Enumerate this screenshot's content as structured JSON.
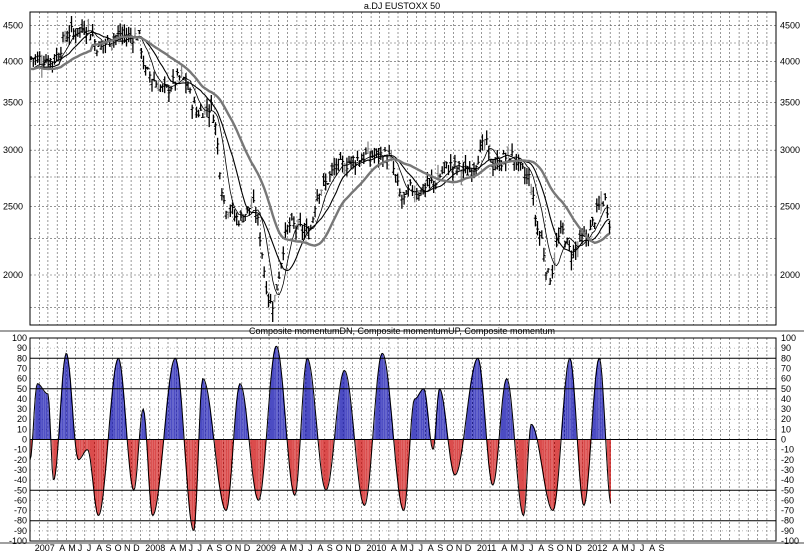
{
  "chart_data": [
    {
      "type": "ohlc",
      "title": "a.DJ EUSTOXX 50",
      "y_scale": "log",
      "ylim": [
        1700,
        4700
      ],
      "y_ticks": [
        4500,
        4000,
        3500,
        3000,
        2500,
        2000
      ],
      "y_tick_labels": [
        "4500",
        "4000",
        "3500",
        "3000",
        "2500",
        "2000"
      ],
      "x_range": [
        "2007-01-01",
        "2013-10-01"
      ],
      "price_anchors": [
        [
          "2007-01-05",
          4050
        ],
        [
          "2007-03-15",
          4020
        ],
        [
          "2007-05-15",
          4400
        ],
        [
          "2007-07-10",
          4480
        ],
        [
          "2007-08-15",
          4200
        ],
        [
          "2007-10-20",
          4350
        ],
        [
          "2007-12-25",
          4350
        ],
        [
          "2008-01-20",
          3850
        ],
        [
          "2008-03-20",
          3650
        ],
        [
          "2008-05-15",
          3800
        ],
        [
          "2008-07-10",
          3400
        ],
        [
          "2008-08-20",
          3450
        ],
        [
          "2008-10-10",
          2500
        ],
        [
          "2008-11-20",
          2400
        ],
        [
          "2009-01-05",
          2500
        ],
        [
          "2009-03-09",
          1820
        ],
        [
          "2009-05-10",
          2350
        ],
        [
          "2009-07-10",
          2300
        ],
        [
          "2009-08-15",
          2650
        ],
        [
          "2009-10-20",
          2850
        ],
        [
          "2009-12-20",
          2920
        ],
        [
          "2010-01-20",
          2950
        ],
        [
          "2010-03-25",
          2950
        ],
        [
          "2010-05-20",
          2550
        ],
        [
          "2010-06-15",
          2650
        ],
        [
          "2010-07-10",
          2620
        ],
        [
          "2010-08-20",
          2700
        ],
        [
          "2010-10-20",
          2850
        ],
        [
          "2010-12-20",
          2800
        ],
        [
          "2011-02-15",
          3050
        ],
        [
          "2011-03-15",
          2850
        ],
        [
          "2011-05-05",
          2950
        ],
        [
          "2011-07-05",
          2750
        ],
        [
          "2011-08-10",
          2300
        ],
        [
          "2011-09-12",
          1990
        ],
        [
          "2011-10-25",
          2300
        ],
        [
          "2011-11-25",
          2150
        ],
        [
          "2012-01-05",
          2250
        ],
        [
          "2012-03-15",
          2550
        ],
        [
          "2012-04-05",
          2350
        ]
      ],
      "moving_averages": [
        {
          "style": "thin",
          "window_days": 50
        },
        {
          "style": "medium",
          "window_days": 100
        },
        {
          "style": "thick",
          "window_days": 200
        }
      ]
    },
    {
      "type": "bar",
      "title": "Composite momentumDN, Composite momentumUP, Composite momentum",
      "ylim": [
        -100,
        100
      ],
      "y_ticks": [
        100,
        90,
        80,
        70,
        60,
        50,
        40,
        30,
        20,
        10,
        0,
        -10,
        -20,
        -30,
        -40,
        -50,
        -60,
        -70,
        -80,
        -90,
        -100
      ],
      "y_tick_labels": [
        "100",
        "90",
        "80",
        "70",
        "60",
        "50",
        "40",
        "30",
        "20",
        "10",
        "0",
        "-10",
        "-20",
        "-30",
        "-40",
        "-50",
        "-60",
        "-70",
        "-80",
        "-90",
        "-100"
      ],
      "reference_lines": [
        80,
        50,
        0,
        -50,
        -80
      ],
      "series": [
        {
          "color": "#0000aa"
        },
        {
          "color": "#cc0000"
        }
      ],
      "momentum_anchors": [
        [
          "2007-01-01",
          -20
        ],
        [
          "2007-01-25",
          55
        ],
        [
          "2007-03-01",
          45
        ],
        [
          "2007-03-20",
          -40
        ],
        [
          "2007-05-01",
          85
        ],
        [
          "2007-06-10",
          -20
        ],
        [
          "2007-07-10",
          -10
        ],
        [
          "2007-08-15",
          -75
        ],
        [
          "2007-10-20",
          80
        ],
        [
          "2007-12-10",
          -50
        ],
        [
          "2008-01-10",
          30
        ],
        [
          "2008-02-10",
          -75
        ],
        [
          "2008-04-25",
          80
        ],
        [
          "2008-06-25",
          -90
        ],
        [
          "2008-07-25",
          60
        ],
        [
          "2008-10-10",
          -70
        ],
        [
          "2008-11-25",
          55
        ],
        [
          "2009-01-25",
          -60
        ],
        [
          "2009-03-25",
          92
        ],
        [
          "2009-05-25",
          -55
        ],
        [
          "2009-07-05",
          80
        ],
        [
          "2009-09-05",
          -50
        ],
        [
          "2009-11-05",
          68
        ],
        [
          "2010-01-10",
          -65
        ],
        [
          "2010-03-10",
          85
        ],
        [
          "2010-05-20",
          -70
        ],
        [
          "2010-06-25",
          40
        ],
        [
          "2010-07-25",
          50
        ],
        [
          "2010-08-25",
          -10
        ],
        [
          "2010-09-15",
          50
        ],
        [
          "2010-11-05",
          -35
        ],
        [
          "2011-01-20",
          80
        ],
        [
          "2011-03-10",
          -45
        ],
        [
          "2011-04-25",
          60
        ],
        [
          "2011-06-20",
          -75
        ],
        [
          "2011-07-15",
          15
        ],
        [
          "2011-09-25",
          -70
        ],
        [
          "2011-11-20",
          80
        ],
        [
          "2012-01-05",
          -65
        ],
        [
          "2012-02-25",
          80
        ],
        [
          "2012-04-05",
          -65
        ]
      ]
    }
  ],
  "x_axis": {
    "labels": [
      {
        "date": "2007-01-10",
        "text": "2007"
      },
      {
        "date": "2007-04-01",
        "text": "A"
      },
      {
        "date": "2007-05-01",
        "text": "M"
      },
      {
        "date": "2007-06-01",
        "text": "J"
      },
      {
        "date": "2007-07-01",
        "text": "J"
      },
      {
        "date": "2007-08-01",
        "text": "A"
      },
      {
        "date": "2007-09-01",
        "text": "S"
      },
      {
        "date": "2007-10-01",
        "text": "O"
      },
      {
        "date": "2007-11-01",
        "text": "N"
      },
      {
        "date": "2007-12-01",
        "text": "D"
      },
      {
        "date": "2008-01-10",
        "text": "2008"
      },
      {
        "date": "2008-04-01",
        "text": "A"
      },
      {
        "date": "2008-05-01",
        "text": "M"
      },
      {
        "date": "2008-06-01",
        "text": "J"
      },
      {
        "date": "2008-07-01",
        "text": "J"
      },
      {
        "date": "2008-08-01",
        "text": "A"
      },
      {
        "date": "2008-09-01",
        "text": "S"
      },
      {
        "date": "2008-10-01",
        "text": "O"
      },
      {
        "date": "2008-11-01",
        "text": "N"
      },
      {
        "date": "2008-12-01",
        "text": "D"
      },
      {
        "date": "2009-01-10",
        "text": "2009"
      },
      {
        "date": "2009-04-01",
        "text": "A"
      },
      {
        "date": "2009-05-01",
        "text": "M"
      },
      {
        "date": "2009-06-01",
        "text": "J"
      },
      {
        "date": "2009-07-01",
        "text": "J"
      },
      {
        "date": "2009-08-01",
        "text": "A"
      },
      {
        "date": "2009-09-01",
        "text": "S"
      },
      {
        "date": "2009-10-01",
        "text": "O"
      },
      {
        "date": "2009-11-01",
        "text": "N"
      },
      {
        "date": "2009-12-01",
        "text": "D"
      },
      {
        "date": "2010-01-10",
        "text": "2010"
      },
      {
        "date": "2010-04-01",
        "text": "A"
      },
      {
        "date": "2010-05-01",
        "text": "M"
      },
      {
        "date": "2010-06-01",
        "text": "J"
      },
      {
        "date": "2010-07-01",
        "text": "J"
      },
      {
        "date": "2010-08-01",
        "text": "A"
      },
      {
        "date": "2010-09-01",
        "text": "S"
      },
      {
        "date": "2010-10-01",
        "text": "O"
      },
      {
        "date": "2010-11-01",
        "text": "N"
      },
      {
        "date": "2010-12-01",
        "text": "D"
      },
      {
        "date": "2011-01-10",
        "text": "2011"
      },
      {
        "date": "2011-04-01",
        "text": "A"
      },
      {
        "date": "2011-05-01",
        "text": "M"
      },
      {
        "date": "2011-06-01",
        "text": "J"
      },
      {
        "date": "2011-07-01",
        "text": "J"
      },
      {
        "date": "2011-08-01",
        "text": "A"
      },
      {
        "date": "2011-09-01",
        "text": "S"
      },
      {
        "date": "2011-10-01",
        "text": "O"
      },
      {
        "date": "2011-11-01",
        "text": "N"
      },
      {
        "date": "2011-12-01",
        "text": "D"
      },
      {
        "date": "2012-01-10",
        "text": "2012"
      },
      {
        "date": "2012-04-01",
        "text": "A"
      },
      {
        "date": "2012-05-01",
        "text": "M"
      },
      {
        "date": "2012-06-01",
        "text": "J"
      },
      {
        "date": "2012-07-01",
        "text": "J"
      },
      {
        "date": "2012-08-01",
        "text": "A"
      },
      {
        "date": "2012-09-01",
        "text": "S"
      }
    ]
  }
}
